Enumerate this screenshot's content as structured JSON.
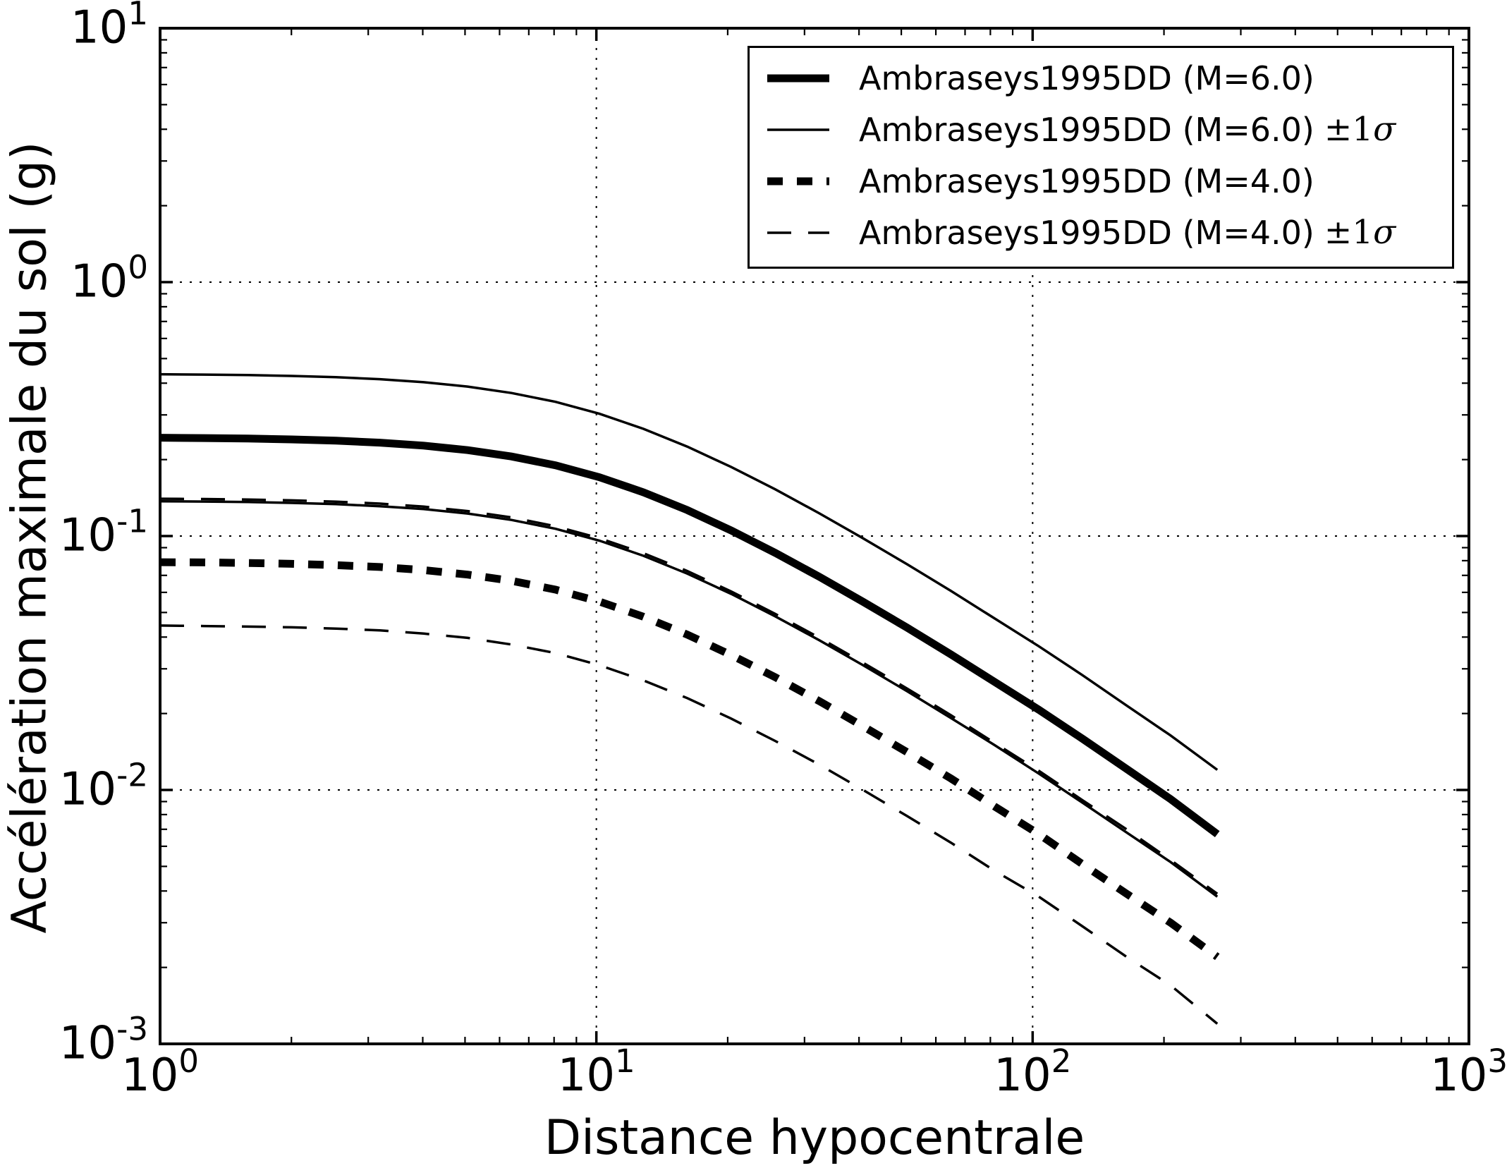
{
  "chart_data": {
    "type": "line",
    "title": "",
    "xlabel": "Distance hypocentrale",
    "ylabel": "Accélération maximale du sol (g)",
    "x_scale": "log",
    "y_scale": "log",
    "xlim": [
      1,
      1000
    ],
    "ylim": [
      0.001,
      10
    ],
    "tick_base": "10",
    "x_tick_values": [
      1,
      10,
      100,
      1000
    ],
    "x_tick_exponents": [
      "0",
      "1",
      "2",
      "3"
    ],
    "y_tick_values": [
      10,
      1,
      0.1,
      0.01,
      0.001
    ],
    "y_tick_exponents": [
      "1",
      "0",
      "-1",
      "-2",
      "-3"
    ],
    "grid": {
      "style": "dotted",
      "x_values": [
        10,
        100
      ],
      "y_values": [
        1,
        0.1,
        0.01
      ]
    },
    "line_color": "#000000",
    "background_color": "#ffffff",
    "x": [
      1.0,
      1.26,
      1.59,
      2.0,
      2.53,
      3.19,
      4.02,
      5.07,
      6.39,
      8.06,
      10.16,
      12.82,
      16.16,
      20.37,
      25.69,
      32.4,
      40.85,
      51.51,
      64.95,
      81.9,
      103.3,
      130.2,
      164.2,
      207.1,
      265.0
    ],
    "series": [
      {
        "id": "m6-upper",
        "name": "Ambraseys1995DD (M=6.0) +1σ",
        "style": "thin-solid",
        "values": [
          0.4337,
          0.4323,
          0.4303,
          0.4271,
          0.4222,
          0.4147,
          0.4036,
          0.3877,
          0.3658,
          0.3377,
          0.3032,
          0.2644,
          0.225,
          0.1871,
          0.1528,
          0.123,
          0.098,
          0.0775,
          0.0608,
          0.0473,
          0.0368,
          0.0283,
          0.0215,
          0.0164,
          0.012
        ]
      },
      {
        "id": "m6-lower",
        "name": "Ambraseys1995DD (M=6.0) -1σ",
        "style": "thin-solid",
        "values": [
          0.1371,
          0.1367,
          0.1361,
          0.1351,
          0.1335,
          0.1311,
          0.1277,
          0.1226,
          0.1157,
          0.1068,
          0.0959,
          0.0836,
          0.0711,
          0.0592,
          0.0483,
          0.0389,
          0.031,
          0.0245,
          0.0192,
          0.015,
          0.0116,
          0.0089,
          0.0068,
          0.0052,
          0.0038
        ]
      },
      {
        "id": "m6-mean",
        "name": "Ambraseys1995DD (M=6.0)",
        "style": "thick-solid",
        "values": [
          0.2439,
          0.2431,
          0.242,
          0.2402,
          0.2374,
          0.2332,
          0.227,
          0.218,
          0.2057,
          0.1899,
          0.1705,
          0.1487,
          0.1265,
          0.1052,
          0.0859,
          0.0692,
          0.0551,
          0.0436,
          0.0342,
          0.0266,
          0.0207,
          0.0159,
          0.0121,
          0.0092,
          0.0067
        ]
      },
      {
        "id": "m4-upper",
        "name": "Ambraseys1995DD (M=4.0) +1σ",
        "style": "thin-dashed",
        "values": [
          0.1403,
          0.1399,
          0.1393,
          0.1382,
          0.1366,
          0.1342,
          0.1306,
          0.1254,
          0.1184,
          0.1093,
          0.0981,
          0.0856,
          0.0728,
          0.0605,
          0.0494,
          0.0398,
          0.0317,
          0.0251,
          0.0197,
          0.0153,
          0.0119,
          0.0091,
          0.007,
          0.0053,
          0.0039
        ]
      },
      {
        "id": "m4-lower",
        "name": "Ambraseys1995DD (M=4.0) -1σ",
        "style": "thin-dashed",
        "values": [
          0.0444,
          0.0442,
          0.044,
          0.0437,
          0.0432,
          0.0425,
          0.0413,
          0.0397,
          0.0374,
          0.0346,
          0.031,
          0.027,
          0.023,
          0.0191,
          0.0156,
          0.0126,
          0.01,
          0.0079,
          0.0062,
          0.0048,
          0.0038,
          0.0029,
          0.0022,
          0.0017,
          0.0012
        ]
      },
      {
        "id": "m4-mean",
        "name": "Ambraseys1995DD (M=4.0)",
        "style": "thick-dashed",
        "values": [
          0.0789,
          0.0787,
          0.0783,
          0.0777,
          0.0768,
          0.0755,
          0.0734,
          0.0705,
          0.0666,
          0.0615,
          0.0552,
          0.0481,
          0.0409,
          0.034,
          0.0278,
          0.0224,
          0.0178,
          0.0141,
          0.0111,
          0.0086,
          0.0067,
          0.0051,
          0.0039,
          0.003,
          0.0022
        ]
      }
    ],
    "legend": [
      {
        "label": "Ambraseys1995DD (M=6.0)",
        "suffix_pm": "",
        "suffix_sigma": "",
        "style": "thick-solid"
      },
      {
        "label": "Ambraseys1995DD (M=6.0)",
        "suffix_pm": "±1",
        "suffix_sigma": "σ",
        "style": "thin-solid"
      },
      {
        "label": "Ambraseys1995DD (M=4.0)",
        "suffix_pm": "",
        "suffix_sigma": "",
        "style": "thick-dashed"
      },
      {
        "label": "Ambraseys1995DD (M=4.0)",
        "suffix_pm": "±1",
        "suffix_sigma": "σ",
        "style": "thin-dashed"
      }
    ],
    "legend_position": "upper right"
  }
}
